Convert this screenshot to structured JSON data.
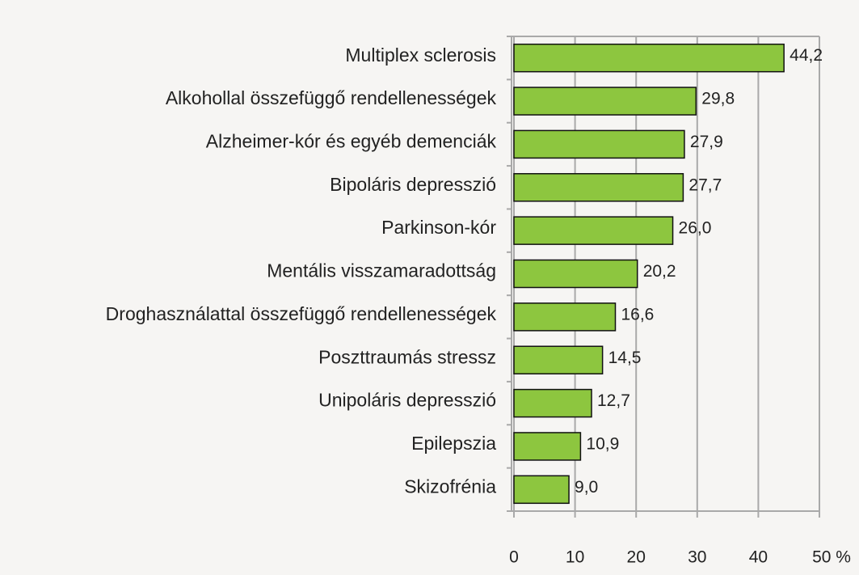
{
  "chart_data": {
    "type": "bar",
    "orientation": "horizontal",
    "categories": [
      "Multiplex sclerosis",
      "Alkohollal összefüggő rendellenességek",
      "Alzheimer-kór és egyéb demenciák",
      "Bipoláris depresszió",
      "Parkinson-kór",
      "Mentális visszamaradottság",
      "Droghasználattal összefüggő rendellenességek",
      "Poszttraumás stressz",
      "Unipoláris depresszió",
      "Epilepszia",
      "Skizofrénia"
    ],
    "values": [
      44.2,
      29.8,
      27.9,
      27.7,
      26.0,
      20.2,
      16.6,
      14.5,
      12.7,
      10.9,
      9.0
    ],
    "value_labels": [
      "44,2",
      "29,8",
      "27,9",
      "27,7",
      "26,0",
      "20,2",
      "16,6",
      "14,5",
      "12,7",
      "10,9",
      "9,0"
    ],
    "color": "#8dc63f",
    "xlim": [
      0,
      50
    ],
    "xticks": [
      0,
      10,
      20,
      30,
      40,
      {
        "value": 50,
        "label": "50 %"
      }
    ],
    "grid": true
  }
}
